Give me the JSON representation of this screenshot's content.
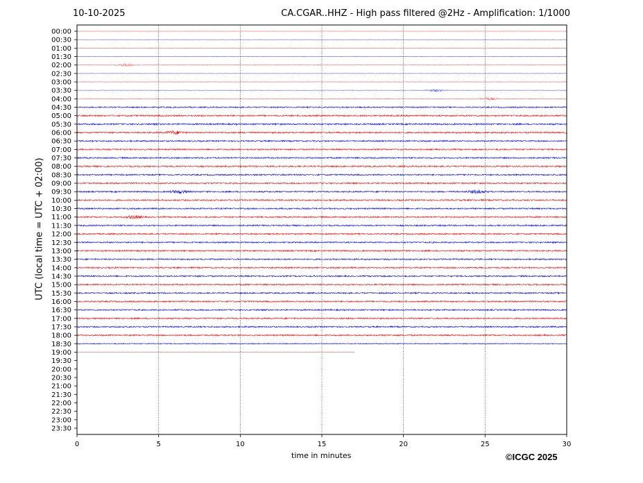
{
  "chart_data": {
    "type": "line",
    "date": "10-10-2025",
    "title": "CA.CGAR..HHZ - High pass filtered @2Hz - Amplification: 1/1000",
    "xlabel": "time in minutes",
    "ylabel": "UTC (local time = UTC + 02:00)",
    "xlim": [
      0,
      30
    ],
    "x_ticks": [
      "0",
      "5",
      "10",
      "15",
      "20",
      "25",
      "30"
    ],
    "grid": "vertical dotted lines at 5-minute intervals",
    "y_tick_labels": [
      "00:00",
      "00:30",
      "01:00",
      "01:30",
      "02:00",
      "02:30",
      "03:00",
      "03:30",
      "04:00",
      "04:30",
      "05:00",
      "05:30",
      "06:00",
      "06:30",
      "07:00",
      "07:30",
      "08:00",
      "08:30",
      "09:00",
      "09:30",
      "10:00",
      "10:30",
      "11:00",
      "11:30",
      "12:00",
      "12:30",
      "13:00",
      "13:30",
      "14:00",
      "14:30",
      "15:00",
      "15:30",
      "16:00",
      "16:30",
      "17:00",
      "17:30",
      "18:00",
      "18:30",
      "19:00",
      "19:30",
      "20:00",
      "20:30",
      "21:00",
      "21:30",
      "22:00",
      "22:30",
      "23:00",
      "23:30"
    ],
    "trace_colors": [
      "#ff0000",
      "#0000ff"
    ],
    "traces_recorded_through": "19:00",
    "last_trace_end_minute": 17,
    "noise_level_by_trace": [
      0.2,
      0.25,
      0.3,
      0.35,
      0.3,
      0.25,
      0.3,
      0.3,
      0.4,
      0.8,
      1,
      1,
      1,
      0.9,
      0.9,
      0.9,
      0.9,
      0.9,
      0.9,
      0.9,
      0.9,
      0.9,
      0.9,
      0.9,
      0.9,
      0.9,
      0.9,
      0.9,
      0.9,
      0.9,
      0.9,
      0.9,
      0.9,
      0.9,
      0.9,
      0.9,
      0.9,
      0.6,
      0.2
    ],
    "events": [
      {
        "trace": "02:00",
        "minute": 3
      },
      {
        "trace": "03:30",
        "minute": 22
      },
      {
        "trace": "04:00",
        "minute": 25.2
      },
      {
        "trace": "06:00",
        "minute": 6
      },
      {
        "trace": "09:30",
        "minute": 6.3
      },
      {
        "trace": "09:30",
        "minute": 24.5
      },
      {
        "trace": "11:00",
        "minute": 3.5
      }
    ]
  },
  "copyright": "©ICGC 2025"
}
